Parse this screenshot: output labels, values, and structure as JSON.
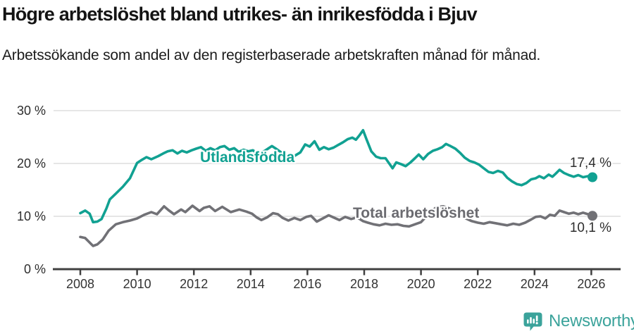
{
  "header": {
    "title": "Högre arbetslöshet bland utrikes- än inrikesfödda i Bjuv",
    "subtitle": "Arbetssökande som andel av den registerbaserade arbetskraften månad för månad."
  },
  "chart_data": {
    "type": "line",
    "title": "Högre arbetslöshet bland utrikes- än inrikesfödda i Bjuv",
    "xlabel": "",
    "ylabel": "",
    "x_ticks": [
      2008,
      2010,
      2012,
      2014,
      2016,
      2018,
      2020,
      2022,
      2024,
      2026
    ],
    "y_ticks": [
      {
        "value": 0,
        "label": "0 %"
      },
      {
        "value": 10,
        "label": "10 %"
      },
      {
        "value": 20,
        "label": "20 %"
      },
      {
        "value": 30,
        "label": "30 %"
      }
    ],
    "ylim": [
      0,
      30
    ],
    "xlim": [
      2007,
      2027
    ],
    "grid": "horizontal",
    "grid_color": "#d8d8d8",
    "axis_color": "#404040",
    "tick_label_color": "#333333",
    "series": [
      {
        "name": "Utlandsfödda",
        "color": "#11a192",
        "end_label": "17,4 %",
        "end_value": 17.4,
        "points": [
          [
            2008.0,
            10.6
          ],
          [
            2008.17,
            11.1
          ],
          [
            2008.33,
            10.5
          ],
          [
            2008.45,
            8.9
          ],
          [
            2008.6,
            9.0
          ],
          [
            2008.75,
            9.5
          ],
          [
            2008.92,
            11.5
          ],
          [
            2009.04,
            13.2
          ],
          [
            2009.25,
            14.3
          ],
          [
            2009.5,
            15.6
          ],
          [
            2009.75,
            17.2
          ],
          [
            2010.0,
            20.1
          ],
          [
            2010.17,
            20.7
          ],
          [
            2010.33,
            21.2
          ],
          [
            2010.5,
            20.8
          ],
          [
            2010.75,
            21.4
          ],
          [
            2010.92,
            21.9
          ],
          [
            2011.08,
            22.3
          ],
          [
            2011.25,
            22.5
          ],
          [
            2011.42,
            21.9
          ],
          [
            2011.58,
            22.4
          ],
          [
            2011.75,
            22.1
          ],
          [
            2011.92,
            22.5
          ],
          [
            2012.08,
            22.8
          ],
          [
            2012.25,
            23.1
          ],
          [
            2012.42,
            22.4
          ],
          [
            2012.58,
            22.9
          ],
          [
            2012.75,
            22.5
          ],
          [
            2012.92,
            23.1
          ],
          [
            2013.08,
            23.3
          ],
          [
            2013.25,
            22.6
          ],
          [
            2013.42,
            22.9
          ],
          [
            2013.58,
            22.2
          ],
          [
            2013.75,
            22.6
          ],
          [
            2013.92,
            22.3
          ],
          [
            2014.08,
            22.5
          ],
          [
            2014.25,
            21.9
          ],
          [
            2014.5,
            22.4
          ],
          [
            2014.75,
            23.3
          ],
          [
            2014.92,
            22.7
          ],
          [
            2015.08,
            22.1
          ],
          [
            2015.25,
            21.7
          ],
          [
            2015.5,
            21.3
          ],
          [
            2015.75,
            22.1
          ],
          [
            2015.92,
            23.6
          ],
          [
            2016.08,
            23.2
          ],
          [
            2016.25,
            24.2
          ],
          [
            2016.42,
            22.6
          ],
          [
            2016.58,
            23.1
          ],
          [
            2016.75,
            22.7
          ],
          [
            2016.92,
            23.0
          ],
          [
            2017.08,
            23.5
          ],
          [
            2017.25,
            24.0
          ],
          [
            2017.42,
            24.6
          ],
          [
            2017.58,
            24.9
          ],
          [
            2017.71,
            24.5
          ],
          [
            2017.83,
            25.3
          ],
          [
            2017.96,
            26.3
          ],
          [
            2018.08,
            24.6
          ],
          [
            2018.25,
            22.3
          ],
          [
            2018.42,
            21.3
          ],
          [
            2018.58,
            21.0
          ],
          [
            2018.75,
            21.0
          ],
          [
            2018.88,
            20.0
          ],
          [
            2019.0,
            19.1
          ],
          [
            2019.13,
            20.2
          ],
          [
            2019.29,
            19.9
          ],
          [
            2019.46,
            19.5
          ],
          [
            2019.63,
            20.2
          ],
          [
            2019.79,
            21.0
          ],
          [
            2019.92,
            21.7
          ],
          [
            2020.08,
            20.8
          ],
          [
            2020.25,
            21.8
          ],
          [
            2020.42,
            22.4
          ],
          [
            2020.58,
            22.7
          ],
          [
            2020.75,
            23.1
          ],
          [
            2020.88,
            23.7
          ],
          [
            2021.04,
            23.3
          ],
          [
            2021.21,
            22.8
          ],
          [
            2021.38,
            22.0
          ],
          [
            2021.54,
            21.1
          ],
          [
            2021.71,
            20.5
          ],
          [
            2021.88,
            20.2
          ],
          [
            2022.04,
            19.8
          ],
          [
            2022.21,
            19.1
          ],
          [
            2022.38,
            18.4
          ],
          [
            2022.54,
            18.2
          ],
          [
            2022.71,
            18.6
          ],
          [
            2022.88,
            18.3
          ],
          [
            2023.04,
            17.3
          ],
          [
            2023.21,
            16.6
          ],
          [
            2023.38,
            16.1
          ],
          [
            2023.54,
            15.9
          ],
          [
            2023.71,
            16.3
          ],
          [
            2023.88,
            17.0
          ],
          [
            2024.04,
            17.2
          ],
          [
            2024.17,
            17.6
          ],
          [
            2024.33,
            17.2
          ],
          [
            2024.5,
            17.9
          ],
          [
            2024.63,
            17.5
          ],
          [
            2024.75,
            18.1
          ],
          [
            2024.88,
            18.8
          ],
          [
            2025.04,
            18.2
          ],
          [
            2025.21,
            17.8
          ],
          [
            2025.38,
            17.5
          ],
          [
            2025.54,
            17.8
          ],
          [
            2025.71,
            17.4
          ],
          [
            2025.88,
            17.6
          ],
          [
            2026.04,
            17.4
          ]
        ]
      },
      {
        "name": "Total arbetslöshet",
        "color": "#717176",
        "label_color": "#6b6b70",
        "end_label": "10,1 %",
        "end_value": 10.1,
        "points": [
          [
            2008.0,
            6.1
          ],
          [
            2008.17,
            5.9
          ],
          [
            2008.3,
            5.2
          ],
          [
            2008.45,
            4.4
          ],
          [
            2008.6,
            4.7
          ],
          [
            2008.79,
            5.6
          ],
          [
            2009.0,
            7.3
          ],
          [
            2009.25,
            8.5
          ],
          [
            2009.5,
            8.9
          ],
          [
            2009.75,
            9.2
          ],
          [
            2010.0,
            9.6
          ],
          [
            2010.25,
            10.3
          ],
          [
            2010.5,
            10.8
          ],
          [
            2010.7,
            10.4
          ],
          [
            2010.95,
            11.9
          ],
          [
            2011.1,
            11.2
          ],
          [
            2011.3,
            10.4
          ],
          [
            2011.55,
            11.3
          ],
          [
            2011.7,
            10.8
          ],
          [
            2011.95,
            12.0
          ],
          [
            2012.2,
            11.0
          ],
          [
            2012.35,
            11.6
          ],
          [
            2012.55,
            11.9
          ],
          [
            2012.75,
            11.0
          ],
          [
            2013.0,
            11.8
          ],
          [
            2013.3,
            10.8
          ],
          [
            2013.6,
            11.3
          ],
          [
            2013.85,
            10.9
          ],
          [
            2014.05,
            10.5
          ],
          [
            2014.21,
            9.8
          ],
          [
            2014.38,
            9.3
          ],
          [
            2014.58,
            9.8
          ],
          [
            2014.79,
            10.6
          ],
          [
            2014.96,
            10.4
          ],
          [
            2015.13,
            9.7
          ],
          [
            2015.33,
            9.2
          ],
          [
            2015.54,
            9.7
          ],
          [
            2015.75,
            9.3
          ],
          [
            2015.96,
            9.9
          ],
          [
            2016.13,
            10.1
          ],
          [
            2016.33,
            9.0
          ],
          [
            2016.54,
            9.6
          ],
          [
            2016.75,
            10.2
          ],
          [
            2016.96,
            9.7
          ],
          [
            2017.13,
            9.3
          ],
          [
            2017.33,
            9.9
          ],
          [
            2017.54,
            9.5
          ],
          [
            2017.75,
            9.8
          ],
          [
            2017.96,
            9.1
          ],
          [
            2018.13,
            8.8
          ],
          [
            2018.33,
            8.5
          ],
          [
            2018.54,
            8.3
          ],
          [
            2018.75,
            8.6
          ],
          [
            2018.96,
            8.4
          ],
          [
            2019.17,
            8.5
          ],
          [
            2019.38,
            8.2
          ],
          [
            2019.58,
            8.1
          ],
          [
            2019.79,
            8.5
          ],
          [
            2020.0,
            8.9
          ],
          [
            2020.17,
            9.9
          ],
          [
            2020.38,
            11.1
          ],
          [
            2020.58,
            11.8
          ],
          [
            2020.79,
            11.9
          ],
          [
            2021.0,
            11.5
          ],
          [
            2021.17,
            11.0
          ],
          [
            2021.38,
            10.3
          ],
          [
            2021.58,
            9.6
          ],
          [
            2021.79,
            9.1
          ],
          [
            2022.0,
            8.8
          ],
          [
            2022.21,
            8.6
          ],
          [
            2022.42,
            8.9
          ],
          [
            2022.63,
            8.7
          ],
          [
            2022.83,
            8.5
          ],
          [
            2023.04,
            8.3
          ],
          [
            2023.25,
            8.6
          ],
          [
            2023.46,
            8.4
          ],
          [
            2023.67,
            8.8
          ],
          [
            2023.88,
            9.4
          ],
          [
            2024.04,
            9.9
          ],
          [
            2024.21,
            10.0
          ],
          [
            2024.38,
            9.6
          ],
          [
            2024.54,
            10.3
          ],
          [
            2024.71,
            10.1
          ],
          [
            2024.88,
            11.1
          ],
          [
            2025.04,
            10.8
          ],
          [
            2025.21,
            10.5
          ],
          [
            2025.38,
            10.7
          ],
          [
            2025.54,
            10.4
          ],
          [
            2025.71,
            10.7
          ],
          [
            2025.88,
            10.4
          ],
          [
            2026.04,
            10.1
          ]
        ]
      }
    ]
  },
  "footer": {
    "brand": "Newsworthy",
    "logo_color": "#3ba39b"
  }
}
